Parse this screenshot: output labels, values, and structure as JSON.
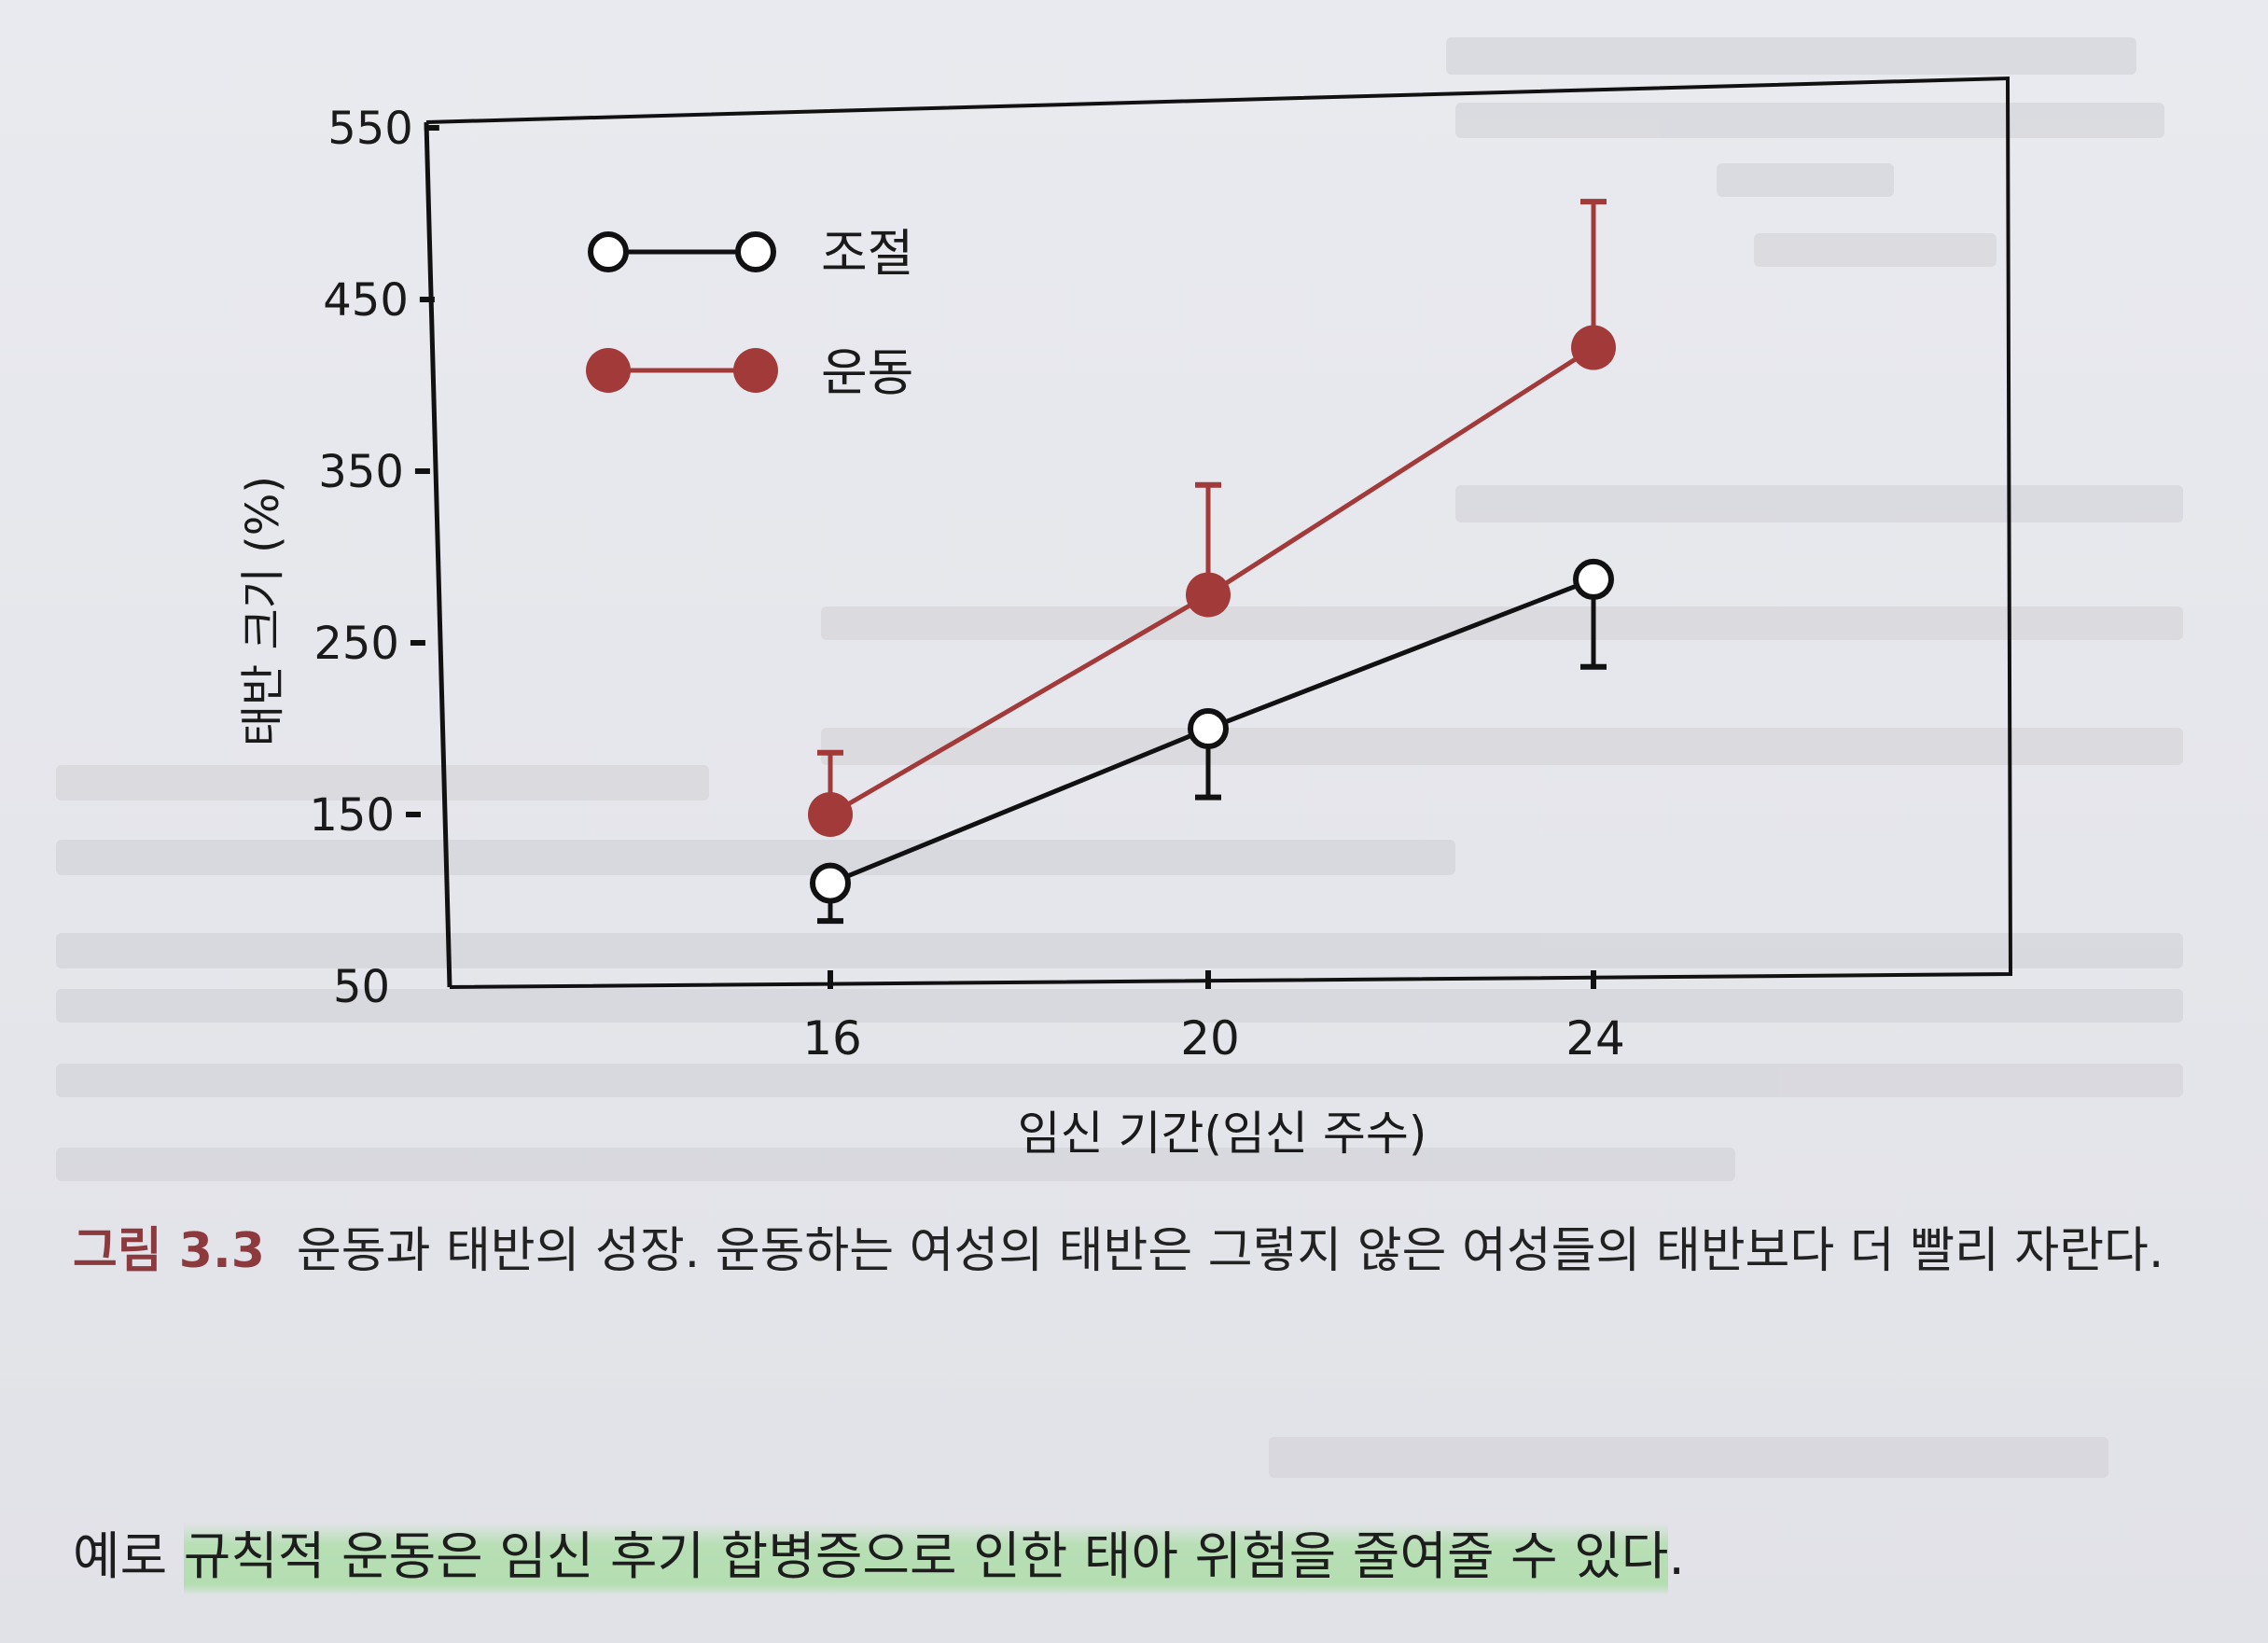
{
  "chart_data": {
    "type": "line",
    "xlabel": "임신 기간(임신 주수)",
    "ylabel": "태반 크기 (%)",
    "x": [
      16,
      20,
      24
    ],
    "x_ticks": [
      "16",
      "20",
      "24"
    ],
    "y_ticks": [
      "550",
      "450",
      "350",
      "250",
      "150",
      "50"
    ],
    "ylim": [
      50,
      550
    ],
    "legend_position": "top-left",
    "grid": false,
    "series": [
      {
        "name": "조절",
        "marker": "open-circle",
        "color": "#111111",
        "values": [
          110,
          200,
          287
        ],
        "error": [
          {
            "dir": "down",
            "to": 88
          },
          {
            "dir": "down",
            "to": 160
          },
          {
            "dir": "down",
            "to": 236
          }
        ]
      },
      {
        "name": "운동",
        "marker": "filled-circle",
        "color": "#a23a3a",
        "values": [
          150,
          278,
          422
        ],
        "error": [
          {
            "dir": "up",
            "to": 186
          },
          {
            "dir": "up",
            "to": 342
          },
          {
            "dir": "up",
            "to": 507
          }
        ]
      }
    ]
  },
  "caption": {
    "label": "그림 3.3",
    "text": "운동과 태반의 성장. 운동하는 여성의 태반은 그렇지 않은 여성들의 태반보다 더 빨리 자란다."
  },
  "body": {
    "pre": "예로 ",
    "highlighted": "규칙적 운동은 임신 후기 합병증으로 인한 태아 위험을 줄여줄 수 있다",
    "post": "."
  }
}
